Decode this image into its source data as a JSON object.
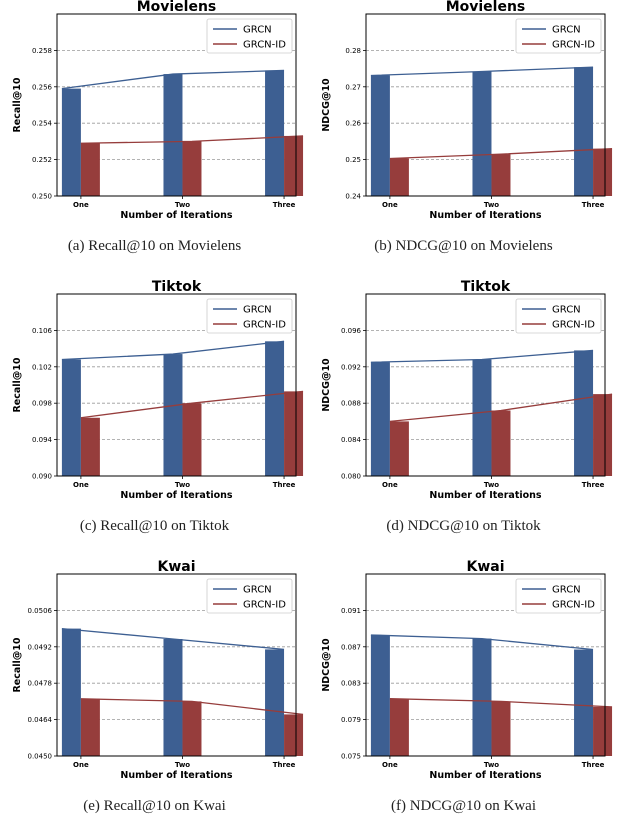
{
  "colors": {
    "GRCN": "#3d5f92",
    "GRCN-ID": "#963d3c"
  },
  "captions": [
    "(a)  Recall@10 on Movielens",
    "(b)  NDCG@10 on Movielens",
    "(c)  Recall@10 on Tiktok",
    "(d)  NDCG@10 on Tiktok",
    "(e)  Recall@10 on Kwai",
    "(f)  NDCG@10 on Kwai"
  ],
  "chart_data": [
    {
      "type": "bar",
      "title": "Movielens",
      "xlabel": "Number of Iterations",
      "ylabel": "Recall@10",
      "categories": [
        "One",
        "Two",
        "Three"
      ],
      "ylim": [
        0.25,
        0.26
      ],
      "yticks": [
        0.25,
        0.252,
        0.254,
        0.256,
        0.258
      ],
      "ytick_labels": [
        "0.250",
        "0.252",
        "0.254",
        "0.256",
        "0.258"
      ],
      "grid": true,
      "legend": "top-right",
      "series": [
        {
          "name": "GRCN",
          "values": [
            0.2559,
            0.2567,
            0.2569
          ]
        },
        {
          "name": "GRCN-ID",
          "values": [
            0.2529,
            0.253,
            0.2533
          ]
        }
      ]
    },
    {
      "type": "bar",
      "title": "Movielens",
      "xlabel": "Number of Iterations",
      "ylabel": "NDCG@10",
      "categories": [
        "One",
        "Two",
        "Three"
      ],
      "ylim": [
        0.24,
        0.29
      ],
      "yticks": [
        0.24,
        0.25,
        0.26,
        0.27,
        0.28
      ],
      "ytick_labels": [
        "0.24",
        "0.25",
        "0.26",
        "0.27",
        "0.28"
      ],
      "grid": true,
      "legend": "top-right",
      "series": [
        {
          "name": "GRCN",
          "values": [
            0.2731,
            0.2742,
            0.2754
          ]
        },
        {
          "name": "GRCN-ID",
          "values": [
            0.2503,
            0.2515,
            0.253
          ]
        }
      ]
    },
    {
      "type": "bar",
      "title": "Tiktok",
      "xlabel": "Number of Iterations",
      "ylabel": "Recall@10",
      "categories": [
        "One",
        "Two",
        "Three"
      ],
      "ylim": [
        0.09,
        0.11
      ],
      "yticks": [
        0.09,
        0.094,
        0.098,
        0.102,
        0.106
      ],
      "ytick_labels": [
        "0.090",
        "0.094",
        "0.098",
        "0.102",
        "0.106"
      ],
      "grid": true,
      "legend": "top-right",
      "series": [
        {
          "name": "GRCN",
          "values": [
            0.1028,
            0.1034,
            0.1048
          ]
        },
        {
          "name": "GRCN-ID",
          "values": [
            0.0964,
            0.098,
            0.0993
          ]
        }
      ]
    },
    {
      "type": "bar",
      "title": "Tiktok",
      "xlabel": "Number of Iterations",
      "ylabel": "NDCG@10",
      "categories": [
        "One",
        "Two",
        "Three"
      ],
      "ylim": [
        0.08,
        0.1
      ],
      "yticks": [
        0.08,
        0.084,
        0.088,
        0.092,
        0.096
      ],
      "ytick_labels": [
        "0.080",
        "0.084",
        "0.088",
        "0.092",
        "0.096"
      ],
      "grid": true,
      "legend": "top-right",
      "series": [
        {
          "name": "GRCN",
          "values": [
            0.0925,
            0.0928,
            0.0938
          ]
        },
        {
          "name": "GRCN-ID",
          "values": [
            0.086,
            0.0872,
            0.089
          ]
        }
      ]
    },
    {
      "type": "bar",
      "title": "Kwai",
      "xlabel": "Number of Iterations",
      "ylabel": "Recall@10",
      "categories": [
        "One",
        "Two",
        "Three"
      ],
      "ylim": [
        0.045,
        0.052
      ],
      "yticks": [
        0.045,
        0.0464,
        0.0478,
        0.0492,
        0.0506
      ],
      "ytick_labels": [
        "0.0450",
        "0.0464",
        "0.0478",
        "0.0492",
        "0.0506"
      ],
      "grid": true,
      "legend": "top-right",
      "series": [
        {
          "name": "GRCN",
          "values": [
            0.0499,
            0.0495,
            0.0491
          ]
        },
        {
          "name": "GRCN-ID",
          "values": [
            0.0472,
            0.0471,
            0.0466
          ]
        }
      ]
    },
    {
      "type": "bar",
      "title": "Kwai",
      "xlabel": "Number of Iterations",
      "ylabel": "NDCG@10",
      "categories": [
        "One",
        "Two",
        "Three"
      ],
      "ylim": [
        0.075,
        0.095
      ],
      "yticks": [
        0.075,
        0.079,
        0.083,
        0.087,
        0.091
      ],
      "ytick_labels": [
        "0.075",
        "0.079",
        "0.083",
        "0.087",
        "0.091"
      ],
      "grid": true,
      "legend": "top-right",
      "series": [
        {
          "name": "GRCN",
          "values": [
            0.0883,
            0.0879,
            0.0867
          ]
        },
        {
          "name": "GRCN-ID",
          "values": [
            0.0813,
            0.081,
            0.0804
          ]
        }
      ]
    }
  ]
}
